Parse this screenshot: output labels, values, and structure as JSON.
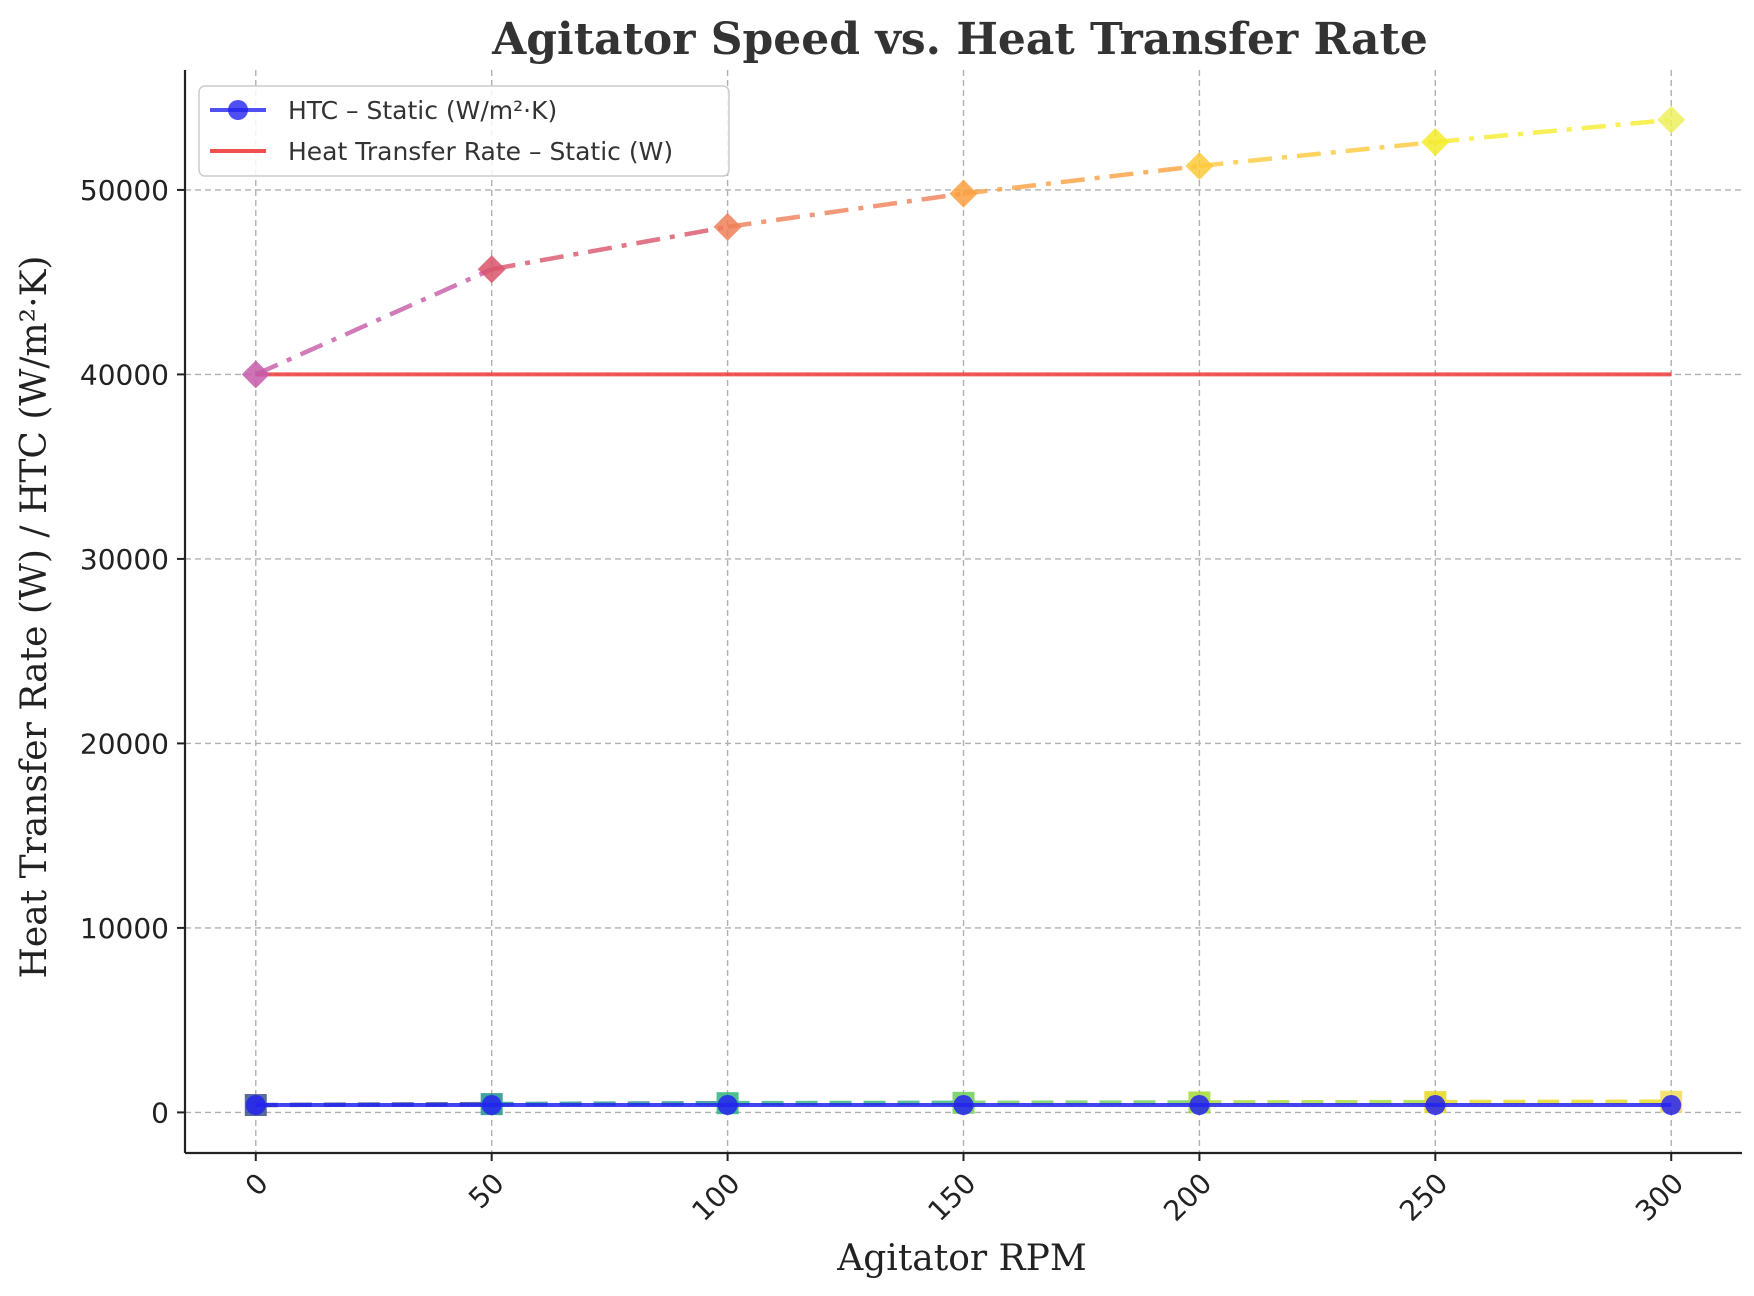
{
  "chart_data": {
    "type": "line",
    "title": "Agitator Speed vs. Heat Transfer Rate",
    "xlabel": "Agitator RPM",
    "ylabel": "Heat Transfer Rate (W) / HTC (W/m²·K)",
    "x": [
      0,
      50,
      100,
      150,
      200,
      250,
      300
    ],
    "xticks": [
      0,
      50,
      100,
      150,
      200,
      250,
      300
    ],
    "xtick_labels": [
      "0",
      "50",
      "100",
      "150",
      "200",
      "250",
      "300"
    ],
    "yticks": [
      0,
      10000,
      20000,
      30000,
      40000,
      50000
    ],
    "ytick_labels": [
      "0",
      "10000",
      "20000",
      "30000",
      "40000",
      "50000"
    ],
    "xlim": [
      -15,
      315
    ],
    "ylim": [
      -2200,
      56500
    ],
    "grid": true,
    "legend_position": "top-left",
    "series": [
      {
        "name": "HTC – Static (W/m²·K)",
        "in_legend": true,
        "style": "solid",
        "marker": "circle",
        "color": "#2323f0",
        "values": [
          400,
          400,
          400,
          400,
          400,
          400,
          400
        ]
      },
      {
        "name": "Heat Transfer Rate – Static (W)",
        "in_legend": true,
        "style": "solid",
        "marker": "none",
        "color": "#f03c3c",
        "values": [
          40000,
          40000,
          40000,
          40000,
          40000,
          40000,
          40000
        ]
      },
      {
        "in_legend": false,
        "style": "dashed",
        "marker": "square",
        "colors": [
          "#3b528b",
          "#21918c",
          "#2fb47c",
          "#6ece58",
          "#a5db36",
          "#e5d81f",
          "#f2dc5a"
        ],
        "values": [
          400,
          450,
          500,
          520,
          540,
          560,
          580
        ]
      },
      {
        "in_legend": false,
        "style": "dashdot",
        "marker": "diamond",
        "colors": [
          "#c55aa8",
          "#d9546a",
          "#ee7f58",
          "#fba040",
          "#fcc93a",
          "#f5ec2c",
          "#ecf05e"
        ],
        "values": [
          40000,
          45700,
          48000,
          49800,
          51300,
          52600,
          53800
        ]
      }
    ]
  }
}
